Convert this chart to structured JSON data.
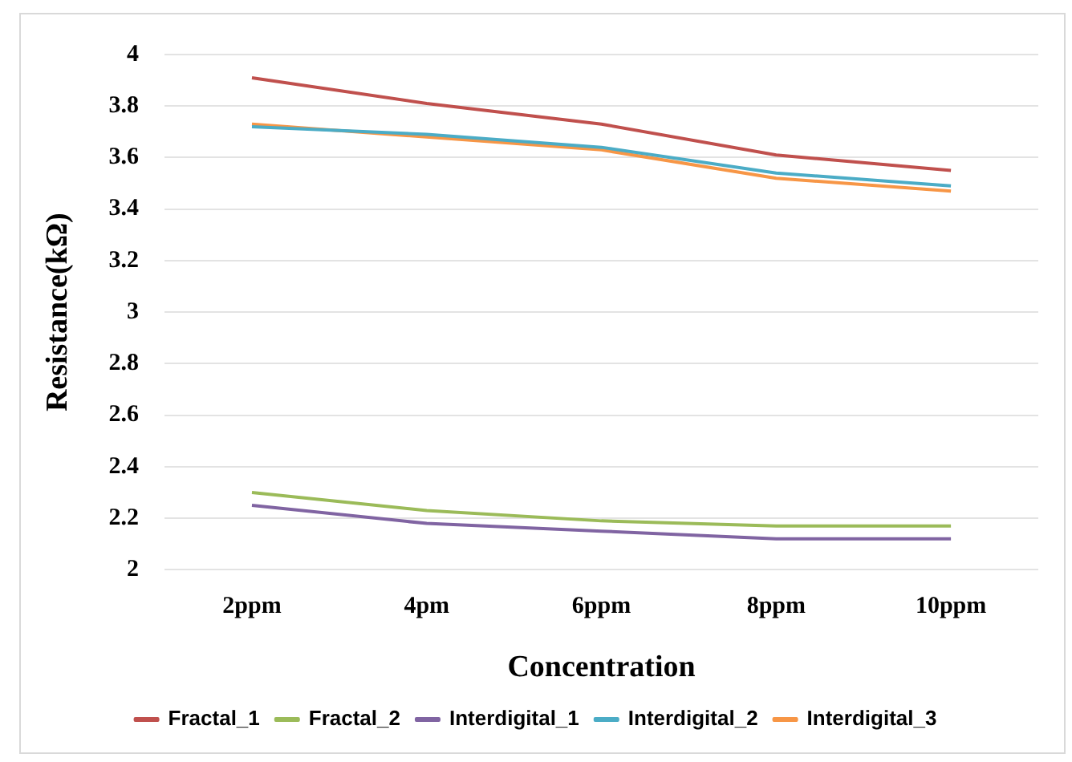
{
  "chart_data": {
    "type": "line",
    "xlabel": "Concentration",
    "ylabel": "Resistance(kΩ)",
    "categories": [
      "2ppm",
      "4pm",
      "6ppm",
      "8ppm",
      "10ppm"
    ],
    "series": [
      {
        "name": "Fractal_1",
        "color": "#c0504d",
        "values": [
          3.91,
          3.81,
          3.73,
          3.61,
          3.55
        ]
      },
      {
        "name": "Fractal_2",
        "color": "#9bbb59",
        "values": [
          2.3,
          2.23,
          2.19,
          2.17,
          2.17
        ]
      },
      {
        "name": "Interdigital_1",
        "color": "#8064a2",
        "values": [
          2.25,
          2.18,
          2.15,
          2.12,
          2.12
        ]
      },
      {
        "name": "Interdigital_2",
        "color": "#4bacc6",
        "values": [
          3.72,
          3.69,
          3.64,
          3.54,
          3.49
        ]
      },
      {
        "name": "Interdigital_3",
        "color": "#f79646",
        "values": [
          3.73,
          3.68,
          3.63,
          3.52,
          3.47
        ]
      }
    ],
    "ylim": [
      2,
      4
    ],
    "yticks": [
      2,
      2.2,
      2.4,
      2.6,
      2.8,
      3,
      3.2,
      3.4,
      3.6,
      3.8,
      4
    ],
    "grid": "y",
    "legend": "bottom",
    "marker": "none",
    "line_style": "solid"
  }
}
